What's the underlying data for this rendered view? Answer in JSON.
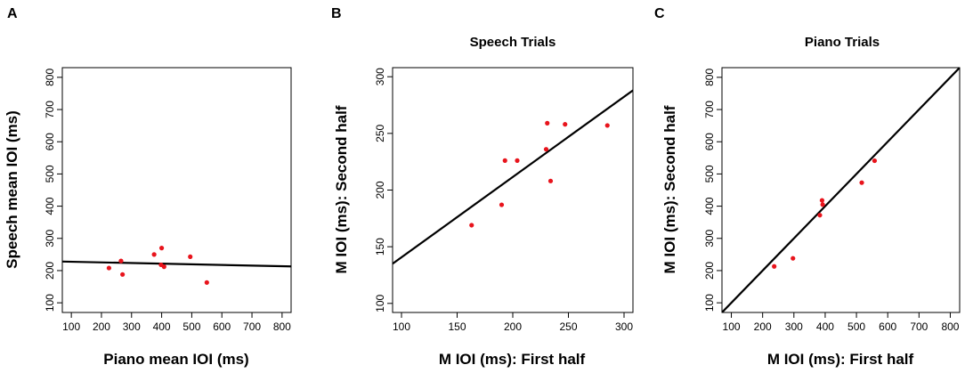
{
  "chart_data": [
    {
      "type": "scatter",
      "panel": "A",
      "title": "",
      "xlabel": "Piano mean IOI (ms)",
      "ylabel": "Speech mean IOI (ms)",
      "xlim": [
        70,
        830
      ],
      "ylim": [
        70,
        830
      ],
      "xticks": [
        100,
        200,
        300,
        400,
        500,
        600,
        700,
        800
      ],
      "yticks": [
        100,
        200,
        300,
        400,
        500,
        600,
        700,
        800
      ],
      "points": [
        {
          "x": 225,
          "y": 208
        },
        {
          "x": 265,
          "y": 230
        },
        {
          "x": 270,
          "y": 188
        },
        {
          "x": 375,
          "y": 250
        },
        {
          "x": 398,
          "y": 218
        },
        {
          "x": 400,
          "y": 270
        },
        {
          "x": 408,
          "y": 212
        },
        {
          "x": 495,
          "y": 243
        },
        {
          "x": 550,
          "y": 163
        }
      ],
      "fit_line": [
        [
          70,
          228
        ],
        [
          830,
          213
        ]
      ],
      "point_color": "#e8141c",
      "line_color": "#000000"
    },
    {
      "type": "scatter",
      "panel": "B",
      "title": "Speech Trials",
      "xlabel": "M IOI (ms): First half",
      "ylabel": "M IOI (ms): Second half",
      "xlim": [
        92,
        308
      ],
      "ylim": [
        92,
        308
      ],
      "xticks": [
        100,
        150,
        200,
        250,
        300
      ],
      "yticks": [
        100,
        150,
        200,
        250,
        300
      ],
      "points": [
        {
          "x": 163,
          "y": 169
        },
        {
          "x": 190,
          "y": 187
        },
        {
          "x": 193,
          "y": 226
        },
        {
          "x": 204,
          "y": 226
        },
        {
          "x": 230,
          "y": 236
        },
        {
          "x": 231,
          "y": 259
        },
        {
          "x": 234,
          "y": 208
        },
        {
          "x": 247,
          "y": 258
        },
        {
          "x": 285,
          "y": 257
        }
      ],
      "fit_line": [
        [
          92,
          135
        ],
        [
          308,
          288
        ]
      ],
      "point_color": "#e8141c",
      "line_color": "#000000"
    },
    {
      "type": "scatter",
      "panel": "C",
      "title": "Piano Trials",
      "xlabel": "M IOI (ms): First half",
      "ylabel": "M IOI (ms): Second half",
      "xlim": [
        70,
        830
      ],
      "ylim": [
        70,
        830
      ],
      "xticks": [
        100,
        200,
        300,
        400,
        500,
        600,
        700,
        800
      ],
      "yticks": [
        100,
        200,
        300,
        400,
        500,
        600,
        700,
        800
      ],
      "points": [
        {
          "x": 237,
          "y": 213
        },
        {
          "x": 297,
          "y": 238
        },
        {
          "x": 383,
          "y": 372
        },
        {
          "x": 390,
          "y": 418
        },
        {
          "x": 392,
          "y": 405
        },
        {
          "x": 517,
          "y": 473
        },
        {
          "x": 558,
          "y": 541
        }
      ],
      "fit_line": [
        [
          70,
          70
        ],
        [
          830,
          830
        ]
      ],
      "point_color": "#e8141c",
      "line_color": "#000000"
    }
  ]
}
